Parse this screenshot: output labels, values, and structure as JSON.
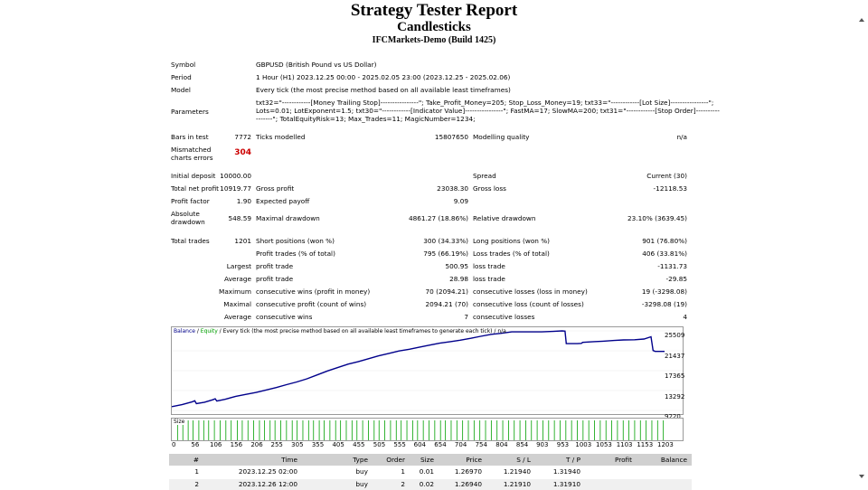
{
  "report": {
    "title": "Strategy Tester Report",
    "expert": "Candlesticks",
    "server": "IFCMarkets-Demo (Build 1425)"
  },
  "info": {
    "symbol_label": "Symbol",
    "symbol": "GBPUSD (British Pound vs US Dollar)",
    "period_label": "Period",
    "period": "1 Hour (H1) 2023.12.25 00:00 - 2025.02.05 23:00 (2023.12.25 - 2025.02.06)",
    "model_label": "Model",
    "model": "Every tick (the most precise method based on all available least timeframes)",
    "parameters_label": "Parameters",
    "parameters_line1": "txt32=\"------------[Money Trailing Stop]----------------\"; Take_Profit_Money=205; Stop_Loss_Money=19; txt33=\"------------[Lot Size]----------------\";",
    "parameters_line2": "Lots=0.01; LotExponent=1.5; txt30=\"------------[Indicator Value]----------------\"; FastMA=17; SlowMA=200; txt31=\"------------[Stop Order]----------",
    "parameters_line3": "-------\"; TotalEquityRisk=13; Max_Trades=11; MagicNumber=1234;"
  },
  "bars": {
    "bars_label": "Bars in test",
    "bars": "7772",
    "ticks_label": "Ticks modelled",
    "ticks": "15807650",
    "quality_label": "Modelling quality",
    "quality": "n/a",
    "mismatch_label_1": "Mismatched",
    "mismatch_label_2": "charts errors",
    "mismatch": "304"
  },
  "stats": {
    "deposit_label": "Initial deposit",
    "deposit": "10000.00",
    "spread_label": "Spread",
    "spread": "Current (30)",
    "net_label": "Total net profit",
    "net": "10919.77",
    "gross_profit_label": "Gross profit",
    "gross_profit": "23038.30",
    "gross_loss_label": "Gross loss",
    "gross_loss": "-12118.53",
    "pf_label": "Profit factor",
    "pf": "1.90",
    "payoff_label": "Expected payoff",
    "payoff": "9.09",
    "abs_dd_label_1": "Absolute",
    "abs_dd_label_2": "drawdown",
    "abs_dd": "548.59",
    "max_dd_label": "Maximal drawdown",
    "max_dd": "4861.27 (18.86%)",
    "rel_dd_label": "Relative drawdown",
    "rel_dd": "23.10% (3639.45)",
    "trades_label": "Total trades",
    "trades": "1201",
    "short_label": "Short positions (won %)",
    "short": "300 (34.33%)",
    "long_label": "Long positions (won %)",
    "long": "901 (76.80%)",
    "profit_trades_label": "Profit trades (% of total)",
    "profit_trades": "795 (66.19%)",
    "loss_trades_label": "Loss trades (% of total)",
    "loss_trades": "406 (33.81%)",
    "largest_label": "Largest",
    "largest_profit_label": "profit trade",
    "largest_profit": "500.95",
    "largest_loss_label": "loss trade",
    "largest_loss": "-1131.73",
    "average_label": "Average",
    "average_profit_label": "profit trade",
    "average_profit": "28.98",
    "average_loss_label": "loss trade",
    "average_loss": "-29.85",
    "maximum_label": "Maximum",
    "max_cons_wins_label": "consecutive wins (profit in money)",
    "max_cons_wins": "70 (2094.21)",
    "max_cons_losses_label": "consecutive losses (loss in money)",
    "max_cons_losses": "19 (-3298.08)",
    "maximal_label": "Maximal",
    "maximal_cons_profit_label": "consecutive profit (count of wins)",
    "maximal_cons_profit": "2094.21 (70)",
    "maximal_cons_loss_label": "consecutive loss (count of losses)",
    "maximal_cons_loss": "-3298.08 (19)",
    "average2_label": "Average",
    "avg_cons_wins_label": "consecutive wins",
    "avg_cons_wins": "7",
    "avg_cons_losses_label": "consecutive losses",
    "avg_cons_losses": "4"
  },
  "chart_data": {
    "type": "line",
    "legend_balance": "Balance",
    "legend_sep1": " / ",
    "legend_equity": "Equity",
    "legend_sep2": " / ",
    "legend_rest": "Every tick (the most precise method based on all available least timeframes to generate each tick) / n/a",
    "volume_label": "Size",
    "yticks": [
      "25509",
      "21437",
      "17365",
      "13292",
      "9220"
    ],
    "ylim": [
      9220,
      25509
    ],
    "xticks": [
      "0",
      "56",
      "106",
      "156",
      "206",
      "255",
      "305",
      "355",
      "405",
      "455",
      "505",
      "555",
      "604",
      "654",
      "704",
      "754",
      "804",
      "854",
      "903",
      "953",
      "1003",
      "1053",
      "1103",
      "1153",
      "1203"
    ],
    "xlim": [
      0,
      1203
    ],
    "colors": {
      "balance": "#00008b",
      "equity": "#00a000"
    },
    "series": [
      {
        "name": "Balance",
        "x": [
          0,
          25,
          50,
          56,
          60,
          80,
          100,
          106,
          110,
          130,
          156,
          180,
          206,
          230,
          255,
          280,
          305,
          330,
          355,
          380,
          405,
          430,
          455,
          480,
          505,
          530,
          555,
          580,
          604,
          630,
          654,
          680,
          704,
          730,
          754,
          780,
          804,
          830,
          854,
          880,
          903,
          930,
          953,
          960,
          963,
          990,
          1000,
          1003,
          1030,
          1053,
          1080,
          1103,
          1130,
          1153,
          1170,
          1175,
          1180,
          1203
        ],
        "y": [
          10000,
          10400,
          11000,
          11200,
          10600,
          10900,
          11400,
          11600,
          11150,
          11500,
          12100,
          12500,
          12900,
          13400,
          13900,
          14500,
          15050,
          15700,
          16500,
          17300,
          18000,
          18700,
          19200,
          19800,
          20400,
          20900,
          21400,
          21750,
          22150,
          22600,
          23000,
          23300,
          23600,
          24000,
          24400,
          24800,
          25000,
          25300,
          25300,
          25300,
          25300,
          25400,
          25509,
          25450,
          22900,
          22900,
          22950,
          23150,
          23300,
          23400,
          23550,
          23650,
          23700,
          23850,
          24300,
          21500,
          21300,
          21300
        ]
      }
    ],
    "volume_spikes": [
      14,
      27,
      40,
      52,
      66,
      78,
      90,
      104,
      118,
      132,
      145,
      160,
      172,
      186,
      200,
      214,
      226,
      240,
      252,
      266,
      280,
      294,
      306,
      320,
      334,
      346,
      360,
      372,
      386,
      400,
      412,
      426,
      440,
      452,
      466,
      480,
      494,
      506,
      520,
      534,
      548,
      560,
      574,
      588,
      600,
      614,
      628,
      642,
      656,
      668,
      682,
      696,
      710,
      724,
      738,
      752,
      766,
      780,
      794,
      808,
      822,
      836,
      850,
      864,
      878,
      892,
      906,
      920,
      934,
      948,
      962,
      976,
      990,
      1004,
      1018,
      1032,
      1046,
      1060,
      1074,
      1088,
      1102,
      1116,
      1130,
      1144,
      1158,
      1172,
      1186,
      1200
    ]
  },
  "table": {
    "headers": [
      "#",
      "Time",
      "Type",
      "Order",
      "Size",
      "Price",
      "S / L",
      "T / P",
      "Profit",
      "Balance"
    ],
    "rows": [
      [
        "1",
        "2023.12.25 02:00",
        "buy",
        "1",
        "0.01",
        "1.26970",
        "1.21940",
        "1.31940",
        "",
        ""
      ],
      [
        "2",
        "2023.12.26 12:00",
        "buy",
        "2",
        "0.02",
        "1.26940",
        "1.21910",
        "1.31910",
        "",
        ""
      ]
    ]
  }
}
